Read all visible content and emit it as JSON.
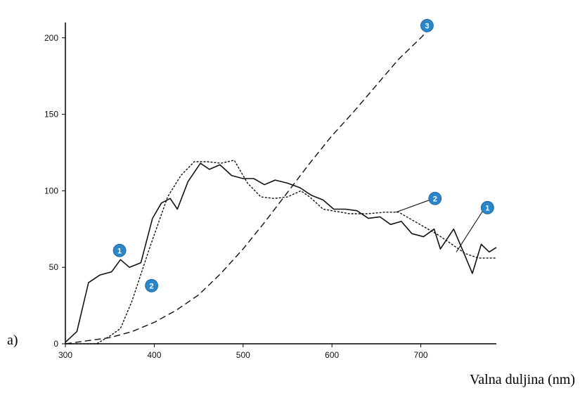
{
  "panel_label": "a)",
  "chart_data": {
    "type": "line",
    "xlabel": "Valna duljina (nm)",
    "ylabel": "",
    "xlim": [
      300,
      785
    ],
    "ylim": [
      0,
      210
    ],
    "x_ticks": [
      300,
      400,
      500,
      600,
      700
    ],
    "y_ticks": [
      0,
      50,
      100,
      150,
      200
    ],
    "grid": false,
    "colors": {
      "line": "#111111",
      "marker": "#2a86c8"
    },
    "series": [
      {
        "name": "1",
        "style": "solid",
        "x": [
          300,
          313,
          326,
          339,
          352,
          362,
          372,
          385,
          398,
          408,
          418,
          426,
          438,
          452,
          462,
          474,
          487,
          500,
          512,
          524,
          536,
          550,
          564,
          577,
          590,
          602,
          615,
          628,
          641,
          654,
          666,
          678,
          690,
          703,
          715,
          722,
          737,
          748,
          758,
          768,
          777,
          785
        ],
        "y": [
          1,
          8,
          40,
          45,
          47,
          55,
          50,
          53,
          82,
          92,
          95,
          88,
          106,
          118,
          114,
          117,
          110,
          108,
          108,
          104,
          107,
          105,
          102,
          97,
          94,
          88,
          88,
          87,
          82,
          83,
          78,
          80,
          72,
          70,
          75,
          62,
          75,
          60,
          46,
          65,
          60,
          63
        ]
      },
      {
        "name": "2",
        "style": "dotted",
        "x": [
          300,
          335,
          350,
          362,
          375,
          395,
          415,
          430,
          445,
          460,
          475,
          490,
          505,
          520,
          535,
          550,
          565,
          575,
          590,
          620,
          640,
          660,
          675,
          690,
          705,
          720,
          735,
          750,
          765,
          785
        ],
        "y": [
          0,
          0,
          5,
          10,
          28,
          63,
          96,
          110,
          119,
          119,
          118,
          120,
          105,
          96,
          95,
          96,
          100,
          96,
          88,
          85,
          85,
          86,
          86,
          81,
          76,
          71,
          65,
          59,
          56,
          56
        ]
      },
      {
        "name": "3",
        "style": "dashed",
        "x": [
          300,
          325,
          350,
          375,
          400,
          425,
          450,
          475,
          500,
          525,
          550,
          575,
          600,
          625,
          650,
          675,
          700,
          710
        ],
        "y": [
          0,
          2,
          4,
          8,
          14,
          22,
          32,
          46,
          62,
          80,
          99,
          118,
          136,
          152,
          169,
          186,
          200,
          206
        ]
      }
    ],
    "markers": [
      {
        "label": "1",
        "x": 361,
        "y": 61
      },
      {
        "label": "2",
        "x": 397,
        "y": 38
      },
      {
        "label": "3",
        "x": 707,
        "y": 208
      },
      {
        "label": "2",
        "x": 716,
        "y": 95
      },
      {
        "label": "1",
        "x": 775,
        "y": 89
      }
    ],
    "leader_lines": [
      {
        "from": [
          710,
          94
        ],
        "to": [
          672,
          86
        ]
      },
      {
        "from": [
          771,
          88
        ],
        "to": [
          740,
          60
        ]
      }
    ]
  }
}
